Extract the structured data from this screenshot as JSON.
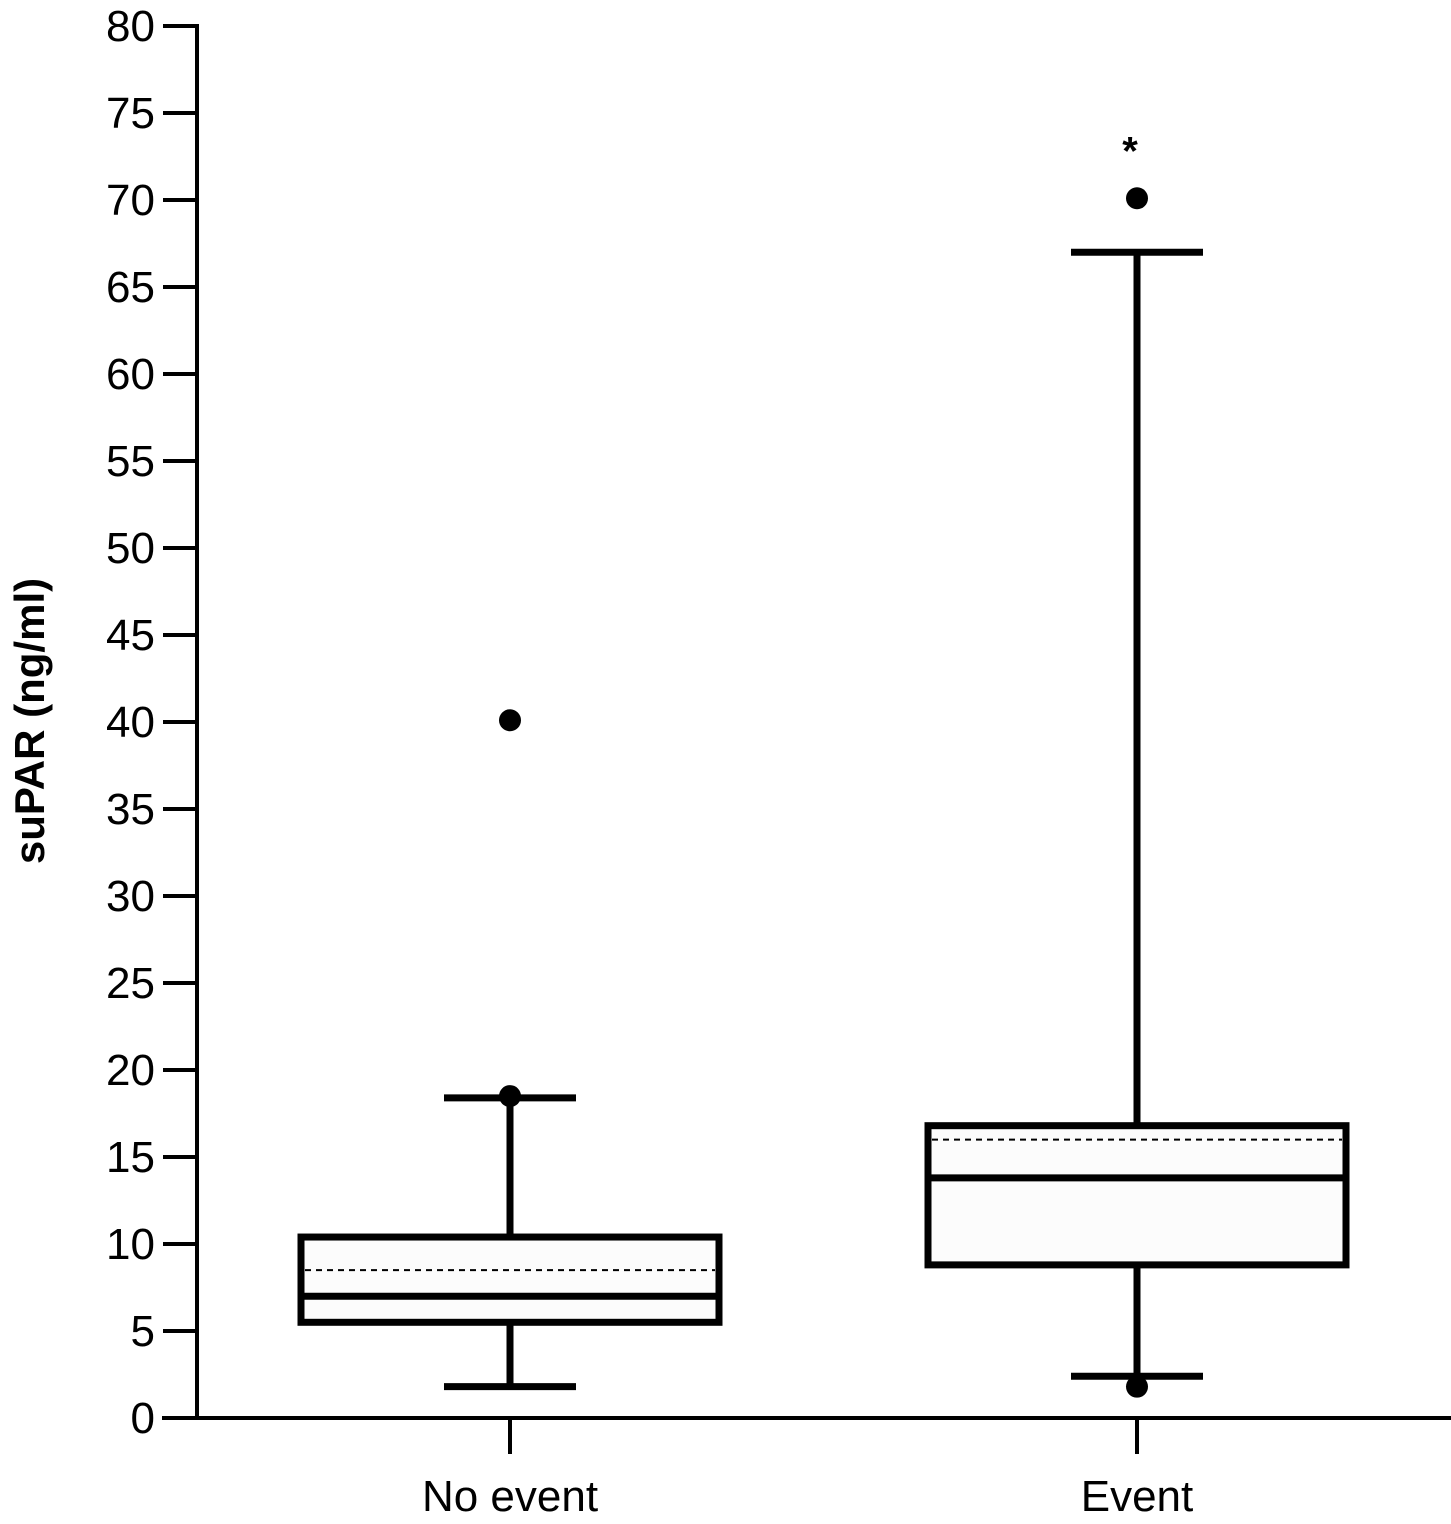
{
  "chart_data": {
    "type": "box",
    "title": "",
    "xlabel": "",
    "ylabel": "suPAR (ng/ml)",
    "ylim": [
      0,
      80
    ],
    "yticks": [
      0,
      5,
      10,
      15,
      20,
      25,
      30,
      35,
      40,
      45,
      50,
      55,
      60,
      65,
      70,
      75,
      80
    ],
    "grid": false,
    "categories": [
      "No event",
      "Event"
    ],
    "boxes": [
      {
        "category": "No event",
        "whisker_low": 1.8,
        "q1": 5.5,
        "median": 7.0,
        "mean": 8.5,
        "q3": 10.4,
        "whisker_high": 18.4,
        "outliers": [
          40.1,
          18.5
        ]
      },
      {
        "category": "Event",
        "whisker_low": 2.4,
        "q1": 8.8,
        "median": 13.8,
        "mean": 16.0,
        "q3": 16.8,
        "whisker_high": 67.0,
        "outliers": [
          70.1,
          1.8
        ]
      }
    ],
    "annotations": [
      {
        "text": "*",
        "category": "Event",
        "y": 73.3
      }
    ]
  },
  "colors": {
    "stroke": "#000000",
    "box_fill": "#fcfcfc",
    "background": "#ffffff"
  }
}
